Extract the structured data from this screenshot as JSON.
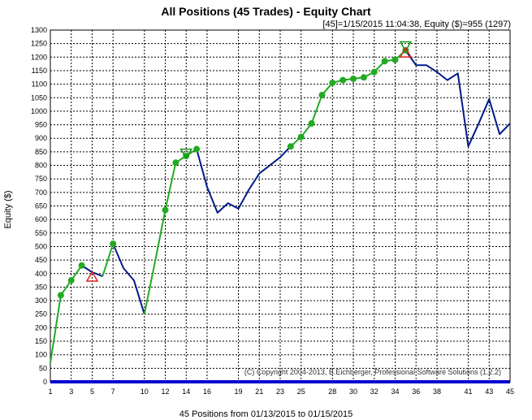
{
  "chart_data": {
    "type": "line",
    "title": "All Positions (45 Trades) - Equity Chart",
    "subtitle": "[45]=1/15/2015 11:04:38,   Equity ($)=955 (1297)",
    "ylabel": "Equity ($)",
    "xlabel": "45 Positions from 01/13/2015 to 01/15/2015",
    "copyright": "(C) Copyright 2004-2013, B.Eichberger, Professional Software Solutions (1.2.2)",
    "xlim": [
      1,
      45
    ],
    "ylim": [
      0,
      1300
    ],
    "x_ticks": [
      1,
      3,
      5,
      7,
      10,
      12,
      14,
      16,
      19,
      21,
      23,
      25,
      28,
      30,
      32,
      34,
      36,
      38,
      41,
      43,
      45
    ],
    "y_ticks": [
      0,
      50,
      100,
      150,
      200,
      250,
      300,
      350,
      400,
      450,
      500,
      550,
      600,
      650,
      700,
      750,
      800,
      850,
      900,
      950,
      1000,
      1050,
      1100,
      1150,
      1200,
      1250,
      1300
    ],
    "grid": true,
    "x": [
      1,
      2,
      3,
      4,
      5,
      6,
      7,
      8,
      9,
      10,
      11,
      12,
      13,
      14,
      15,
      16,
      17,
      18,
      19,
      20,
      21,
      22,
      23,
      24,
      25,
      26,
      27,
      28,
      29,
      30,
      31,
      32,
      33,
      34,
      35,
      36,
      37,
      38,
      39,
      40,
      41,
      42,
      43,
      44,
      45
    ],
    "values": [
      70,
      320,
      375,
      430,
      405,
      390,
      510,
      420,
      375,
      250,
      440,
      635,
      810,
      835,
      860,
      720,
      625,
      660,
      640,
      710,
      770,
      800,
      830,
      870,
      905,
      955,
      1060,
      1105,
      1115,
      1120,
      1125,
      1145,
      1185,
      1190,
      1225,
      1170,
      1170,
      1145,
      1115,
      1140,
      870,
      955,
      1045,
      915,
      955
    ],
    "segments": [
      {
        "series": "winning",
        "from": 1,
        "to": 4
      },
      {
        "series": "losing",
        "from": 4,
        "to": 6
      },
      {
        "series": "winning",
        "from": 6,
        "to": 7
      },
      {
        "series": "losing",
        "from": 7,
        "to": 10
      },
      {
        "series": "winning",
        "from": 10,
        "to": 15
      },
      {
        "series": "losing",
        "from": 15,
        "to": 24
      },
      {
        "series": "winning",
        "from": 24,
        "to": 35
      },
      {
        "series": "losing",
        "from": 35,
        "to": 45
      }
    ],
    "markers": [
      2,
      3,
      4,
      7,
      12,
      13,
      14,
      15,
      24,
      25,
      26,
      27,
      28,
      29,
      30,
      31,
      32,
      33,
      34,
      35
    ],
    "annotations": [
      {
        "kind": "triangle-up",
        "x": 5,
        "y": 387,
        "color": "#dd2222"
      },
      {
        "kind": "triangle-down",
        "x": 14,
        "y": 845,
        "color": "#119911"
      },
      {
        "kind": "triangle-down",
        "x": 35,
        "y": 1242,
        "color": "#119911"
      },
      {
        "kind": "triangle-up",
        "x": 35,
        "y": 1215,
        "color": "#dd2222"
      }
    ],
    "colors": {
      "winning": "#22aa22",
      "losing": "#001a8a",
      "baseline": "#0000cc",
      "marker": "#22aa22"
    }
  }
}
